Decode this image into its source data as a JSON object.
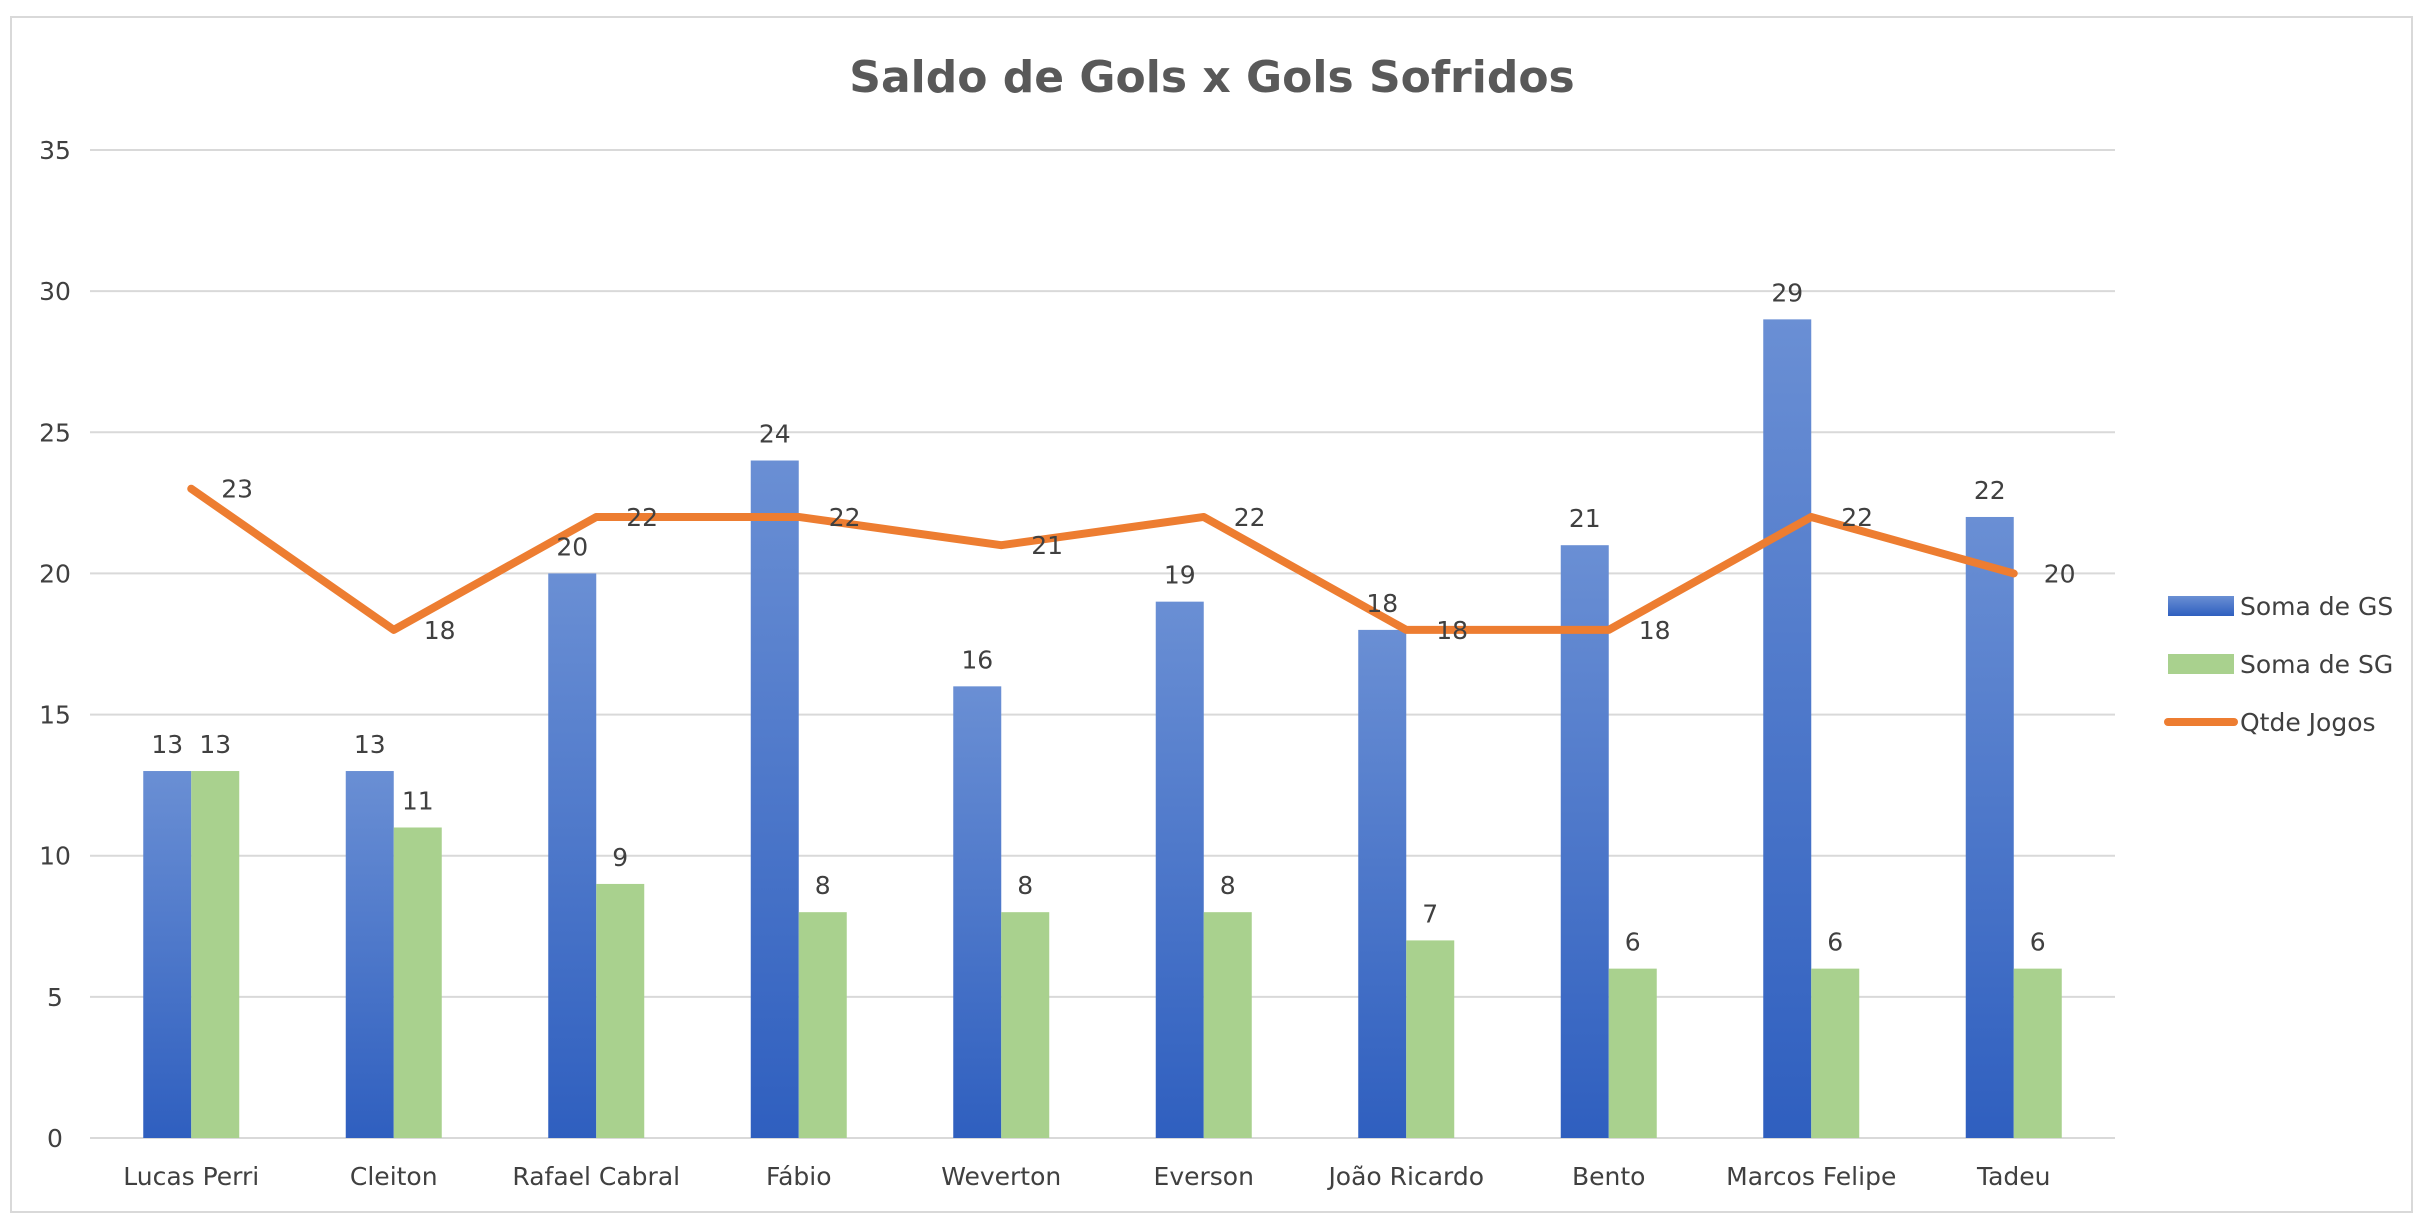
{
  "chart_data": {
    "type": "bar",
    "title": "Saldo de Gols x Gols Sofridos",
    "categories": [
      "Lucas Perri",
      "Cleiton",
      "Rafael Cabral",
      "Fábio",
      "Weverton",
      "Everson",
      "João Ricardo",
      "Bento",
      "Marcos Felipe",
      "Tadeu"
    ],
    "ylim": [
      0,
      35
    ],
    "yticks": [
      0,
      5,
      10,
      15,
      20,
      25,
      30,
      35
    ],
    "grid": true,
    "legend_position": "right",
    "series": [
      {
        "name": "Soma de GS",
        "kind": "bar",
        "color": "#4472c4",
        "values": [
          13,
          13,
          20,
          24,
          16,
          19,
          18,
          21,
          29,
          22
        ]
      },
      {
        "name": "Soma de SG",
        "kind": "bar",
        "color": "#a9d18e",
        "values": [
          13,
          11,
          9,
          8,
          8,
          8,
          7,
          6,
          6,
          6
        ]
      },
      {
        "name": "Qtde Jogos",
        "kind": "line",
        "color": "#ed7d31",
        "values": [
          23,
          18,
          22,
          22,
          21,
          22,
          18,
          18,
          22,
          20
        ]
      }
    ]
  }
}
